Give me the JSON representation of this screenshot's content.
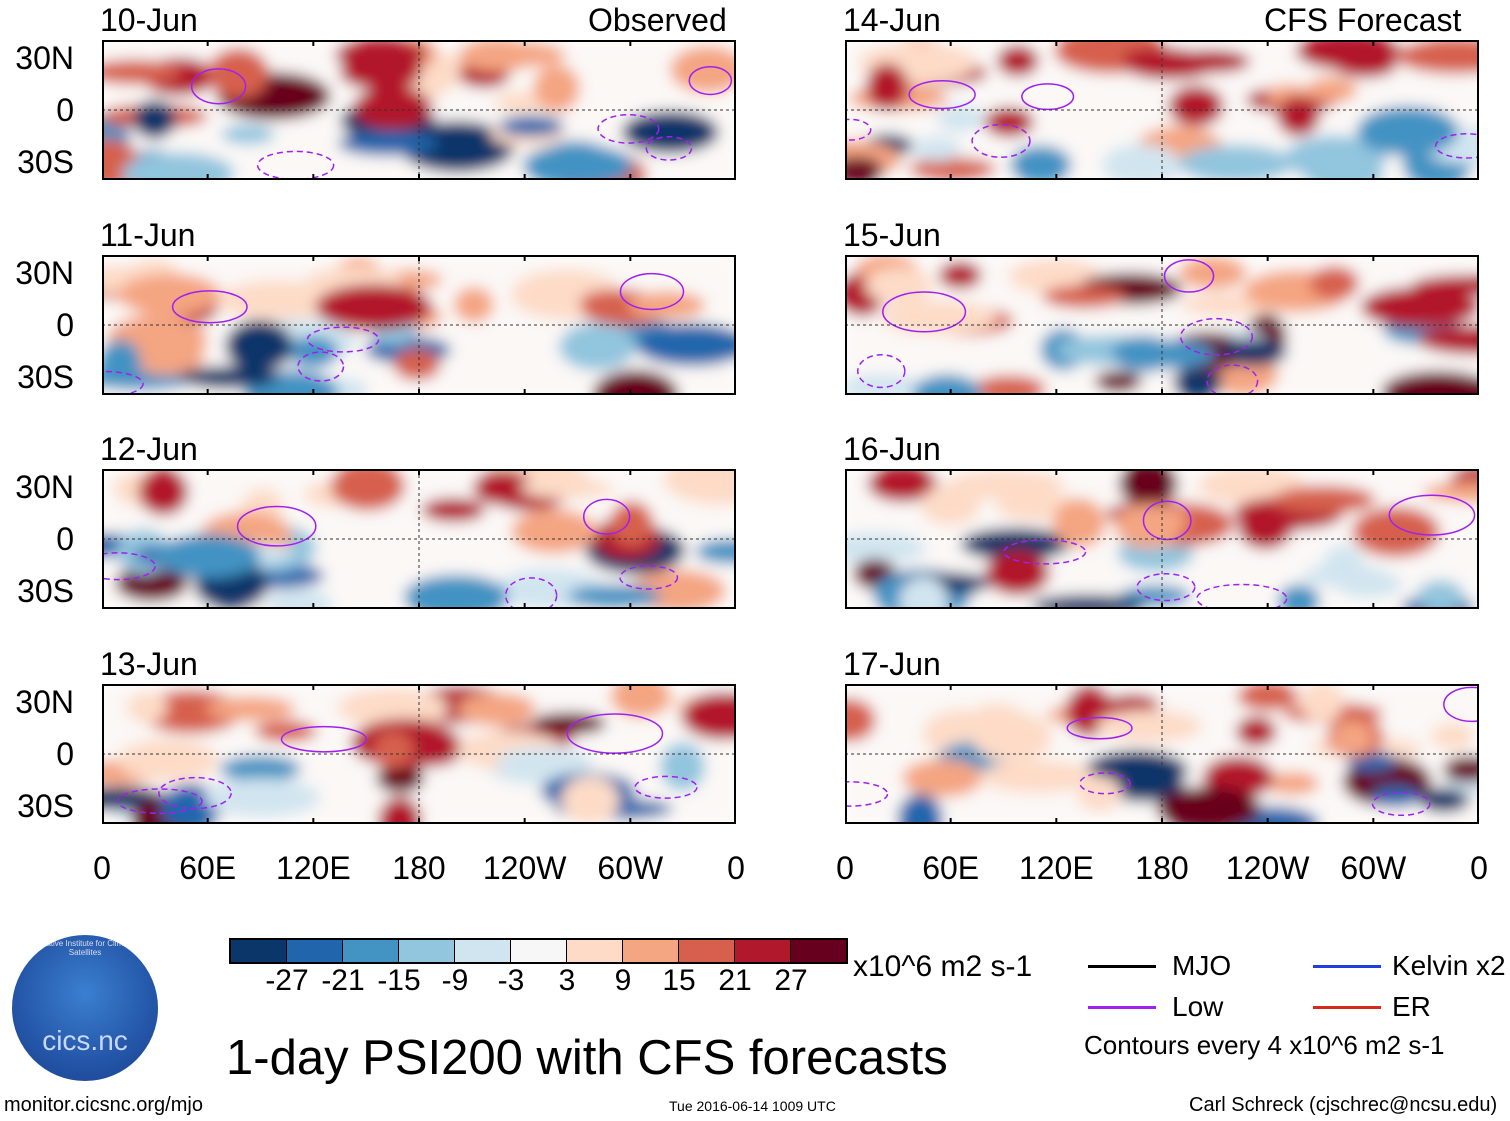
{
  "headers": {
    "left": "Observed",
    "right": "CFS Forecast"
  },
  "panels": [
    {
      "date": "10-Jun",
      "column": "left"
    },
    {
      "date": "11-Jun",
      "column": "left"
    },
    {
      "date": "12-Jun",
      "column": "left"
    },
    {
      "date": "13-Jun",
      "column": "left"
    },
    {
      "date": "14-Jun",
      "column": "right"
    },
    {
      "date": "15-Jun",
      "column": "right"
    },
    {
      "date": "16-Jun",
      "column": "right"
    },
    {
      "date": "17-Jun",
      "column": "right"
    }
  ],
  "y_ticks": [
    "30N",
    "0",
    "30S"
  ],
  "x_ticks": [
    "0",
    "60E",
    "120E",
    "180",
    "120W",
    "60W",
    "0"
  ],
  "colorbar": {
    "colors": [
      "#0b3669",
      "#2166ac",
      "#4393c3",
      "#92c5de",
      "#d1e5f0",
      "#f7f7f7",
      "#fddbc7",
      "#f4a582",
      "#d6604d",
      "#b2182b",
      "#67001f"
    ],
    "labels": [
      "-27",
      "-21",
      "-15",
      "-9",
      "-3",
      "3",
      "9",
      "15",
      "21",
      "27"
    ],
    "units": "x10^6 m2 s-1"
  },
  "legend": [
    {
      "label": "MJO",
      "color": "#000000"
    },
    {
      "label": "Kelvin x2",
      "color": "#1f3fe0"
    },
    {
      "label": "Low",
      "color": "#a020f0"
    },
    {
      "label": "ER",
      "color": "#d7281e"
    }
  ],
  "contour_note": "Contours every 4 x10^6 m2 s-1",
  "title": "1-day PSI200 with CFS forecasts",
  "footer": {
    "left": "monitor.cicsnc.org/mjo",
    "center": "Tue 2016-06-14 1009 UTC",
    "right": "Carl Schreck (cjschrec@ncsu.edu)"
  },
  "logo": {
    "text": "cics.nc",
    "arc": "Cooperative Institute for Climate and Satellites"
  }
}
